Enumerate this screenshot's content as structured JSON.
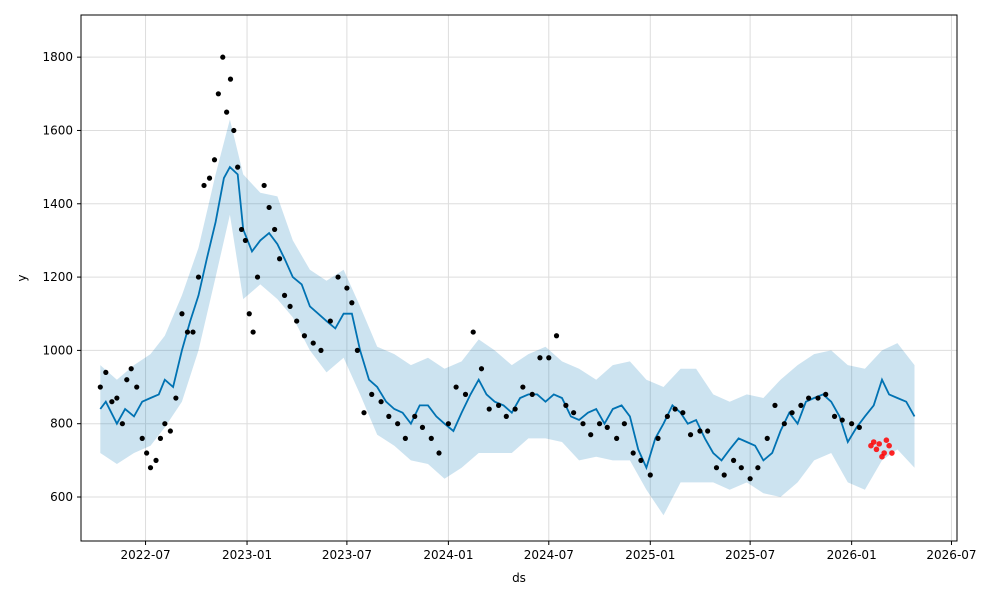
{
  "chart_data": {
    "type": "line",
    "xlabel": "ds",
    "ylabel": "y",
    "grid": true,
    "xlim": [
      "2022-03-06",
      "2026-07-11"
    ],
    "ylim": [
      480,
      1915
    ],
    "x_ticks": [
      "2022-07",
      "2023-01",
      "2023-07",
      "2024-01",
      "2024-07",
      "2025-01",
      "2025-07",
      "2026-01",
      "2026-07"
    ],
    "y_ticks": [
      600,
      800,
      1000,
      1200,
      1400,
      1600,
      1800
    ],
    "colors": {
      "forecast": "#0072B2",
      "uncertainty": "#0072B2",
      "actuals": "#000000",
      "future_actuals": "#ff0000"
    },
    "series": [
      {
        "role": "forecast",
        "x": [
          "2022-04-10",
          "2022-04-20",
          "2022-05-10",
          "2022-05-25",
          "2022-06-10",
          "2022-06-25",
          "2022-07-10",
          "2022-07-25",
          "2022-08-05",
          "2022-08-20",
          "2022-09-05",
          "2022-09-20",
          "2022-10-05",
          "2022-10-20",
          "2022-11-05",
          "2022-11-20",
          "2022-12-01",
          "2022-12-15",
          "2022-12-25",
          "2023-01-10",
          "2023-01-25",
          "2023-02-10",
          "2023-02-25",
          "2023-03-10",
          "2023-03-25",
          "2023-04-10",
          "2023-04-25",
          "2023-05-10",
          "2023-05-25",
          "2023-06-10",
          "2023-06-25",
          "2023-07-10",
          "2023-07-25",
          "2023-08-10",
          "2023-08-25",
          "2023-09-10",
          "2023-09-25",
          "2023-10-10",
          "2023-10-25",
          "2023-11-10",
          "2023-11-25",
          "2023-12-10",
          "2023-12-25",
          "2024-01-10",
          "2024-01-25",
          "2024-02-10",
          "2024-02-25",
          "2024-03-10",
          "2024-03-25",
          "2024-04-10",
          "2024-04-25",
          "2024-05-10",
          "2024-05-25",
          "2024-06-10",
          "2024-06-25",
          "2024-07-10",
          "2024-07-25",
          "2024-08-10",
          "2024-08-25",
          "2024-09-10",
          "2024-09-25",
          "2024-10-10",
          "2024-10-25",
          "2024-11-10",
          "2024-11-25",
          "2024-12-10",
          "2024-12-25",
          "2025-01-10",
          "2025-01-25",
          "2025-02-10",
          "2025-02-25",
          "2025-03-10",
          "2025-03-25",
          "2025-04-10",
          "2025-04-25",
          "2025-05-10",
          "2025-05-25",
          "2025-06-10",
          "2025-06-25",
          "2025-07-10",
          "2025-07-25",
          "2025-08-10",
          "2025-08-25",
          "2025-09-10",
          "2025-09-25",
          "2025-10-10",
          "2025-10-25",
          "2025-11-10",
          "2025-11-25",
          "2025-12-10",
          "2025-12-25",
          "2026-01-10",
          "2026-01-25",
          "2026-02-10",
          "2026-02-25",
          "2026-03-10",
          "2026-03-25",
          "2026-04-10",
          "2026-04-25"
        ],
        "y": [
          840,
          860,
          800,
          840,
          820,
          860,
          870,
          880,
          920,
          900,
          1000,
          1080,
          1150,
          1250,
          1350,
          1470,
          1500,
          1480,
          1330,
          1270,
          1300,
          1320,
          1290,
          1250,
          1200,
          1180,
          1120,
          1100,
          1080,
          1060,
          1100,
          1100,
          1000,
          920,
          900,
          860,
          840,
          830,
          800,
          850,
          850,
          820,
          800,
          780,
          830,
          880,
          920,
          880,
          860,
          850,
          830,
          870,
          880,
          880,
          860,
          880,
          870,
          820,
          810,
          830,
          840,
          800,
          840,
          850,
          820,
          730,
          680,
          760,
          800,
          850,
          830,
          800,
          810,
          760,
          720,
          700,
          730,
          760,
          750,
          740,
          700,
          720,
          780,
          830,
          800,
          860,
          870,
          880,
          860,
          820,
          750,
          790,
          820,
          850,
          920,
          880,
          870,
          860,
          820
        ]
      },
      {
        "role": "uncertainty_upper",
        "x": [
          "2022-04-10",
          "2022-05-10",
          "2022-06-10",
          "2022-07-10",
          "2022-08-05",
          "2022-09-05",
          "2022-10-05",
          "2022-11-05",
          "2022-12-01",
          "2022-12-25",
          "2023-01-25",
          "2023-02-25",
          "2023-03-25",
          "2023-04-25",
          "2023-05-25",
          "2023-06-25",
          "2023-07-25",
          "2023-08-25",
          "2023-09-25",
          "2023-10-25",
          "2023-11-25",
          "2023-12-25",
          "2024-01-25",
          "2024-02-25",
          "2024-03-25",
          "2024-04-25",
          "2024-05-25",
          "2024-06-25",
          "2024-07-25",
          "2024-08-25",
          "2024-09-25",
          "2024-10-25",
          "2024-11-25",
          "2024-12-25",
          "2025-01-25",
          "2025-02-25",
          "2025-03-25",
          "2025-04-25",
          "2025-05-25",
          "2025-06-25",
          "2025-07-25",
          "2025-08-25",
          "2025-09-25",
          "2025-10-25",
          "2025-11-25",
          "2025-12-25",
          "2026-01-25",
          "2026-02-25",
          "2026-03-25",
          "2026-04-25"
        ],
        "y": [
          960,
          920,
          960,
          990,
          1040,
          1150,
          1280,
          1480,
          1630,
          1480,
          1430,
          1420,
          1300,
          1220,
          1190,
          1220,
          1120,
          1010,
          990,
          960,
          980,
          950,
          970,
          1030,
          1000,
          960,
          990,
          1010,
          970,
          950,
          920,
          960,
          970,
          920,
          900,
          950,
          950,
          880,
          860,
          880,
          870,
          920,
          960,
          990,
          1000,
          960,
          950,
          1000,
          1020,
          960
        ]
      },
      {
        "role": "uncertainty_lower",
        "x": [
          "2022-04-10",
          "2022-05-10",
          "2022-06-10",
          "2022-07-10",
          "2022-08-05",
          "2022-09-05",
          "2022-10-05",
          "2022-11-05",
          "2022-12-01",
          "2022-12-25",
          "2023-01-25",
          "2023-02-25",
          "2023-03-25",
          "2023-04-25",
          "2023-05-25",
          "2023-06-25",
          "2023-07-25",
          "2023-08-25",
          "2023-09-25",
          "2023-10-25",
          "2023-11-25",
          "2023-12-25",
          "2024-01-25",
          "2024-02-25",
          "2024-03-25",
          "2024-04-25",
          "2024-05-25",
          "2024-06-25",
          "2024-07-25",
          "2024-08-25",
          "2024-09-25",
          "2024-10-25",
          "2024-11-25",
          "2024-12-25",
          "2025-01-25",
          "2025-02-25",
          "2025-03-25",
          "2025-04-25",
          "2025-05-25",
          "2025-06-25",
          "2025-07-25",
          "2025-08-25",
          "2025-09-25",
          "2025-10-25",
          "2025-11-25",
          "2025-12-25",
          "2026-01-25",
          "2026-02-25",
          "2026-03-25",
          "2026-04-25"
        ],
        "y": [
          720,
          690,
          720,
          740,
          790,
          860,
          1000,
          1200,
          1370,
          1140,
          1180,
          1140,
          1090,
          1000,
          940,
          980,
          880,
          770,
          740,
          700,
          690,
          650,
          680,
          720,
          720,
          720,
          760,
          760,
          750,
          700,
          710,
          700,
          700,
          620,
          550,
          640,
          640,
          640,
          620,
          640,
          610,
          600,
          640,
          700,
          720,
          640,
          620,
          700,
          730,
          680
        ]
      },
      {
        "role": "actuals",
        "x": [
          "2022-04-10",
          "2022-04-20",
          "2022-05-01",
          "2022-05-10",
          "2022-05-20",
          "2022-05-28",
          "2022-06-05",
          "2022-06-15",
          "2022-06-25",
          "2022-07-03",
          "2022-07-10",
          "2022-07-20",
          "2022-07-28",
          "2022-08-05",
          "2022-08-15",
          "2022-08-25",
          "2022-09-05",
          "2022-09-15",
          "2022-09-25",
          "2022-10-05",
          "2022-10-15",
          "2022-10-25",
          "2022-11-03",
          "2022-11-10",
          "2022-11-18",
          "2022-11-25",
          "2022-12-02",
          "2022-12-08",
          "2022-12-15",
          "2022-12-22",
          "2022-12-29",
          "2023-01-05",
          "2023-01-12",
          "2023-01-20",
          "2023-02-01",
          "2023-02-10",
          "2023-02-20",
          "2023-03-01",
          "2023-03-10",
          "2023-03-20",
          "2023-04-01",
          "2023-04-15",
          "2023-05-01",
          "2023-05-15",
          "2023-06-01",
          "2023-06-15",
          "2023-07-01",
          "2023-07-10",
          "2023-07-20",
          "2023-08-01",
          "2023-08-15",
          "2023-09-01",
          "2023-09-15",
          "2023-10-01",
          "2023-10-15",
          "2023-11-01",
          "2023-11-15",
          "2023-12-01",
          "2023-12-15",
          "2024-01-01",
          "2024-01-15",
          "2024-02-01",
          "2024-02-15",
          "2024-03-01",
          "2024-03-15",
          "2024-04-01",
          "2024-04-15",
          "2024-05-01",
          "2024-05-15",
          "2024-06-01",
          "2024-06-15",
          "2024-07-01",
          "2024-07-15",
          "2024-08-01",
          "2024-08-15",
          "2024-09-01",
          "2024-09-15",
          "2024-10-01",
          "2024-10-15",
          "2024-11-01",
          "2024-11-15",
          "2024-12-01",
          "2024-12-15",
          "2025-01-01",
          "2025-01-15",
          "2025-02-01",
          "2025-02-15",
          "2025-03-01",
          "2025-03-15",
          "2025-04-01",
          "2025-04-15",
          "2025-05-01",
          "2025-05-15",
          "2025-06-01",
          "2025-06-15",
          "2025-07-01",
          "2025-07-15",
          "2025-08-01",
          "2025-08-15",
          "2025-09-01",
          "2025-09-15",
          "2025-10-01",
          "2025-10-15",
          "2025-11-01",
          "2025-11-15",
          "2025-12-01",
          "2025-12-15",
          "2026-01-01",
          "2026-01-15"
        ],
        "y": [
          900,
          940,
          860,
          870,
          800,
          920,
          950,
          900,
          760,
          720,
          680,
          700,
          760,
          800,
          780,
          870,
          1100,
          1050,
          1050,
          1200,
          1450,
          1470,
          1520,
          1700,
          1800,
          1650,
          1740,
          1600,
          1500,
          1330,
          1300,
          1100,
          1050,
          1200,
          1450,
          1390,
          1330,
          1250,
          1150,
          1120,
          1080,
          1040,
          1020,
          1000,
          1080,
          1200,
          1170,
          1130,
          1000,
          830,
          880,
          860,
          820,
          800,
          760,
          820,
          790,
          760,
          720,
          800,
          900,
          880,
          1050,
          950,
          840,
          850,
          820,
          840,
          900,
          880,
          980,
          980,
          1040,
          850,
          830,
          800,
          770,
          800,
          790,
          760,
          800,
          720,
          700,
          660,
          760,
          820,
          840,
          830,
          770,
          780,
          780,
          680,
          660,
          700,
          680,
          650,
          680,
          760,
          850,
          800,
          830,
          850,
          870,
          870,
          880,
          820,
          810,
          800,
          790
        ]
      },
      {
        "role": "future_actuals",
        "x": [
          "2026-02-05",
          "2026-02-10",
          "2026-02-15",
          "2026-02-20",
          "2026-02-25",
          "2026-03-01",
          "2026-03-05",
          "2026-03-10",
          "2026-03-15"
        ],
        "y": [
          740,
          750,
          730,
          745,
          710,
          720,
          755,
          740,
          720
        ]
      }
    ]
  }
}
